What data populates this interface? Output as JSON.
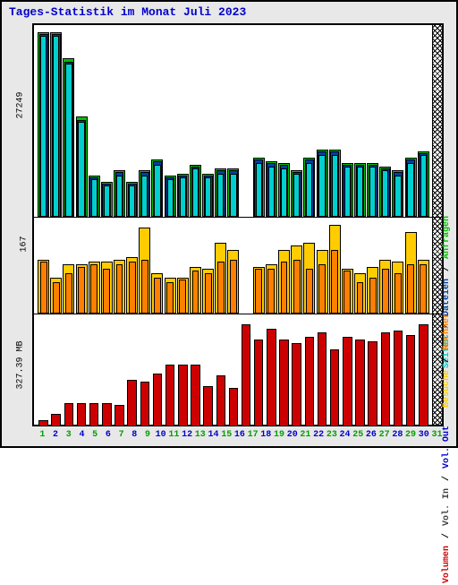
{
  "title": "Tages-Statistik im Monat Juli 2023",
  "title_color": "#0000cc",
  "background": "#e8e8e8",
  "days": [
    1,
    2,
    3,
    4,
    5,
    6,
    7,
    8,
    9,
    10,
    11,
    12,
    13,
    14,
    15,
    16,
    17,
    18,
    19,
    20,
    21,
    22,
    23,
    24,
    25,
    26,
    27,
    28,
    29,
    30,
    31
  ],
  "xtick_colors": [
    "#00a000",
    "#0000cc"
  ],
  "panel_top": {
    "ylabel": "27249",
    "series": {
      "anfragen": {
        "color": "#00c000",
        "width": 0.99,
        "data": [
          99,
          99,
          85,
          54,
          22,
          19,
          25,
          19,
          25,
          31,
          22,
          23,
          28,
          23,
          26,
          26,
          0,
          32,
          30,
          29,
          25,
          32,
          36,
          36,
          29,
          29,
          29,
          27,
          25,
          32,
          35
        ]
      },
      "dateien": {
        "color": "#0040a0",
        "width": 0.75,
        "data": [
          98,
          98,
          83,
          52,
          21,
          18,
          24,
          18,
          24,
          30,
          21,
          22,
          27,
          22,
          25,
          25,
          0,
          31,
          29,
          28,
          24,
          31,
          35,
          35,
          28,
          28,
          28,
          26,
          24,
          31,
          34
        ]
      },
      "seiten": {
        "color": "#00cfcf",
        "width": 0.55,
        "data": [
          97,
          97,
          82,
          51,
          20,
          17,
          22,
          17,
          22,
          28,
          20,
          21,
          26,
          21,
          23,
          23,
          0,
          29,
          27,
          26,
          23,
          29,
          33,
          33,
          27,
          27,
          27,
          25,
          22,
          29,
          33
        ]
      }
    },
    "legend": [
      {
        "label": "Seiten",
        "color": "#00cfcf"
      },
      {
        "label": "Dateien",
        "color": "#0040a0"
      },
      {
        "label": "Anfragen",
        "color": "#00c000"
      }
    ]
  },
  "panel_mid": {
    "ylabel": "167",
    "series": {
      "besuche": {
        "color": "#ffcc00",
        "width": 0.99,
        "data": [
          60,
          40,
          55,
          55,
          58,
          58,
          60,
          62,
          95,
          45,
          40,
          40,
          52,
          50,
          78,
          70,
          0,
          52,
          55,
          70,
          75,
          78,
          70,
          98,
          50,
          45,
          52,
          60,
          58,
          90,
          60
        ]
      },
      "rechner": {
        "color": "#ff7f00",
        "width": 0.6,
        "data": [
          58,
          35,
          45,
          52,
          55,
          50,
          55,
          58,
          60,
          40,
          35,
          38,
          48,
          45,
          58,
          60,
          0,
          50,
          50,
          58,
          60,
          50,
          55,
          70,
          48,
          35,
          40,
          50,
          45,
          55,
          55
        ]
      }
    },
    "legend": [
      {
        "label": "Besuche",
        "color": "#ffcc00"
      },
      {
        "label": "Rechner",
        "color": "#ff7f00"
      }
    ]
  },
  "panel_bot": {
    "ylabel": "327.39 MB",
    "series": {
      "volumen": {
        "color": "#cc0000",
        "width": 0.8,
        "data": [
          6,
          12,
          22,
          22,
          22,
          22,
          20,
          44,
          42,
          50,
          58,
          58,
          58,
          38,
          48,
          36,
          96,
          82,
          92,
          82,
          78,
          84,
          88,
          72,
          84,
          82,
          80,
          88,
          90,
          86,
          96
        ]
      }
    },
    "legend": [
      {
        "label": "Volumen",
        "color": "#cc0000"
      },
      {
        "label": "Vol. In",
        "color": "#404040"
      },
      {
        "label": "Vol. Out",
        "color": "#0000cc"
      }
    ]
  }
}
